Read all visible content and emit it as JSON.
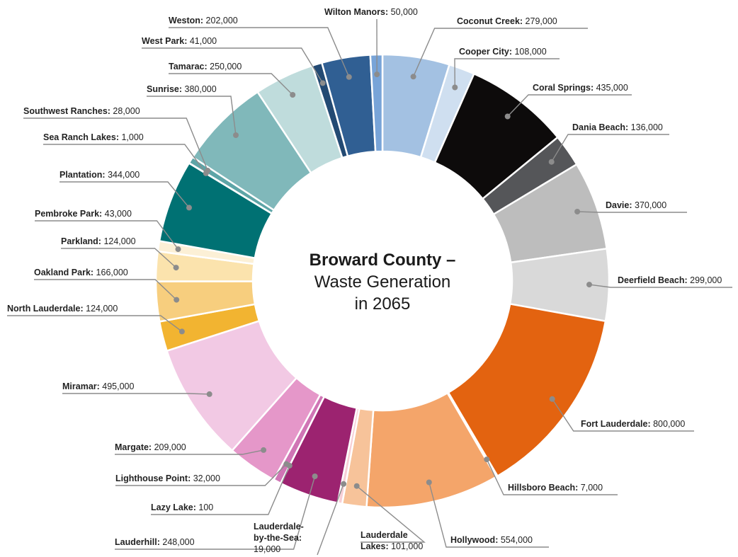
{
  "chart_data": {
    "type": "pie",
    "title_line1": "Broward County –",
    "title_line2": "Waste Generation",
    "title_line3": "in 2065",
    "slices": [
      {
        "name": "Coconut Creek",
        "value": 279000,
        "label": "279,000",
        "color": "#a3c1e2"
      },
      {
        "name": "Cooper City",
        "value": 108000,
        "label": "108,000",
        "color": "#cfdff0"
      },
      {
        "name": "Coral Springs",
        "value": 435000,
        "label": "435,000",
        "color": "#0d0b0b"
      },
      {
        "name": "Dania Beach",
        "value": 136000,
        "label": "136,000",
        "color": "#555659"
      },
      {
        "name": "Davie",
        "value": 370000,
        "label": "370,000",
        "color": "#bdbdbd"
      },
      {
        "name": "Deerfield Beach",
        "value": 299000,
        "label": "299,000",
        "color": "#d9d9d9"
      },
      {
        "name": "Fort Lauderdale",
        "value": 800000,
        "label": "800,000",
        "color": "#e36310"
      },
      {
        "name": "Hillsboro Beach",
        "value": 7000,
        "label": "7,000",
        "color": "#f6c09a"
      },
      {
        "name": "Hollywood",
        "value": 554000,
        "label": "554,000",
        "color": "#f4a56a"
      },
      {
        "name": "Lauderdale Lakes",
        "value": 101000,
        "label": "101,000",
        "color": "#f7c39a"
      },
      {
        "name": "Lauderdale-by-the-Sea",
        "value": 19000,
        "label": "19,000",
        "color": "#f7cfd6"
      },
      {
        "name": "Lauderhill",
        "value": 248000,
        "label": "248,000",
        "color": "#9c2370"
      },
      {
        "name": "Lazy Lake",
        "value": 100,
        "label": "100",
        "color": "#b94a94"
      },
      {
        "name": "Lighthouse Point",
        "value": 32000,
        "label": "32,000",
        "color": "#d075b5"
      },
      {
        "name": "Margate",
        "value": 209000,
        "label": "209,000",
        "color": "#e597c9"
      },
      {
        "name": "Miramar",
        "value": 495000,
        "label": "495,000",
        "color": "#f2c9e4"
      },
      {
        "name": "North Lauderdale",
        "value": 124000,
        "label": "124,000",
        "color": "#f2b431"
      },
      {
        "name": "Oakland Park",
        "value": 166000,
        "label": "166,000",
        "color": "#f7ce7e"
      },
      {
        "name": "Parkland",
        "value": 124000,
        "label": "124,000",
        "color": "#fbe3ad"
      },
      {
        "name": "Pembroke Park",
        "value": 43000,
        "label": "43,000",
        "color": "#fcf0d6"
      },
      {
        "name": "Plantation",
        "value": 344000,
        "label": "344,000",
        "color": "#007173"
      },
      {
        "name": "Sea Ranch Lakes",
        "value": 1000,
        "label": "1,000",
        "color": "#3a9497"
      },
      {
        "name": "Southwest Ranches",
        "value": 28000,
        "label": "28,000",
        "color": "#5ea5a7"
      },
      {
        "name": "Sunrise",
        "value": 380000,
        "label": "380,000",
        "color": "#80b8ba"
      },
      {
        "name": "Tamarac",
        "value": 250000,
        "label": "250,000",
        "color": "#bfdcdc"
      },
      {
        "name": "West Park",
        "value": 41000,
        "label": "41,000",
        "color": "#234a73"
      },
      {
        "name": "Weston",
        "value": 202000,
        "label": "202,000",
        "color": "#305f93"
      },
      {
        "name": "Wilton Manors",
        "value": 50000,
        "label": "50,000",
        "color": "#78a4d8"
      }
    ]
  }
}
